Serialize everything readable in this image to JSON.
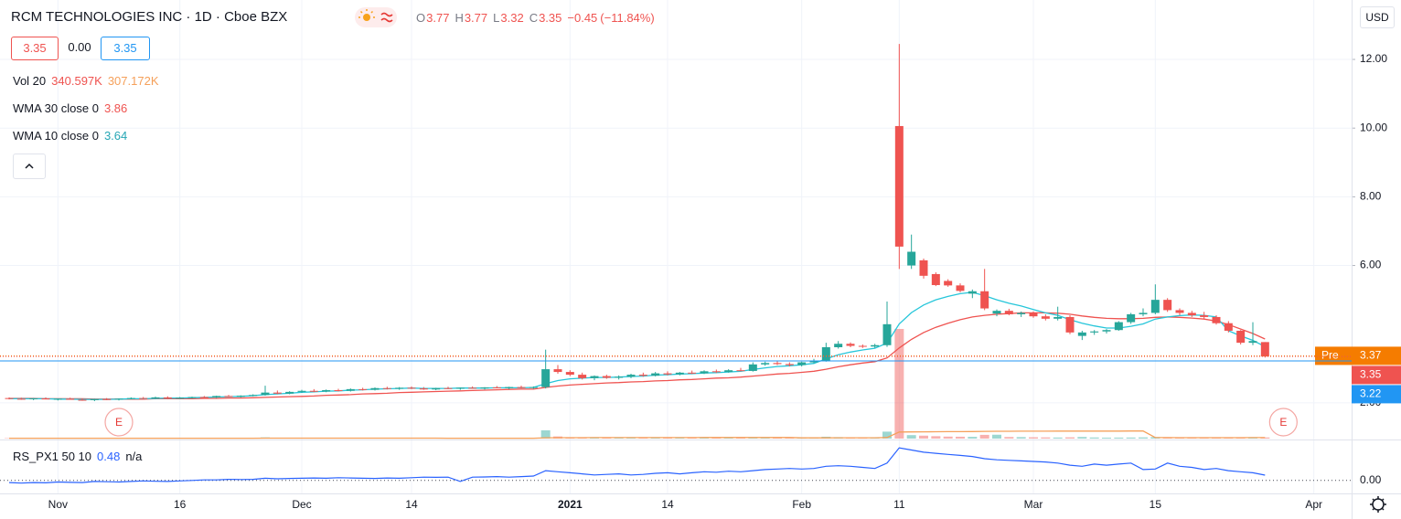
{
  "chart_data": {
    "type": "candlestick",
    "title": "RCM TECHNOLOGIES INC · 1D · Cboe BZX",
    "ohlc_labels": [
      "O",
      "H",
      "L",
      "C"
    ],
    "change": "−0.45",
    "change_pct": "(−11.84%)",
    "quote": {
      "sell": "3.35",
      "spread": "0.00",
      "buy": "3.35"
    },
    "currency": "USD",
    "up_color": "#26a69a",
    "down_color": "#ef5350",
    "grid": true,
    "xlim": [
      -0.75,
      110.1
    ],
    "xticks": [
      {
        "value": 4,
        "label": "Nov"
      },
      {
        "value": 14,
        "label": "16"
      },
      {
        "value": 24,
        "label": "Dec"
      },
      {
        "value": 33,
        "label": "14"
      },
      {
        "value": 46,
        "label": "2021"
      },
      {
        "value": 54,
        "label": "14"
      },
      {
        "value": 65,
        "label": "Feb"
      },
      {
        "value": 73,
        "label": "11"
      },
      {
        "value": 84,
        "label": "Mar"
      },
      {
        "value": 94,
        "label": "15"
      },
      {
        "value": 107,
        "label": "Apr"
      }
    ],
    "ylim": [
      0.96,
      13.73
    ],
    "yticks": [
      {
        "value": 2,
        "label": "2.00"
      },
      {
        "value": 6,
        "label": "6.00"
      },
      {
        "value": 8,
        "label": "8.00"
      },
      {
        "value": 10,
        "label": "10.00"
      },
      {
        "value": 12,
        "label": "12.00"
      }
    ],
    "candles": [
      [
        2.14,
        2.16,
        2.1,
        2.12
      ],
      [
        2.12,
        2.15,
        2.09,
        2.11
      ],
      [
        2.11,
        2.14,
        2.08,
        2.13
      ],
      [
        2.13,
        2.16,
        2.1,
        2.1
      ],
      [
        2.1,
        2.13,
        2.07,
        2.12
      ],
      [
        2.12,
        2.15,
        2.09,
        2.09
      ],
      [
        2.09,
        2.12,
        2.06,
        2.08
      ],
      [
        2.08,
        2.12,
        2.05,
        2.11
      ],
      [
        2.11,
        2.14,
        2.08,
        2.1
      ],
      [
        2.1,
        2.13,
        2.07,
        2.12
      ],
      [
        2.12,
        2.16,
        2.1,
        2.14
      ],
      [
        2.14,
        2.17,
        2.11,
        2.13
      ],
      [
        2.13,
        2.18,
        2.11,
        2.16
      ],
      [
        2.16,
        2.19,
        2.12,
        2.14
      ],
      [
        2.14,
        2.17,
        2.12,
        2.15
      ],
      [
        2.15,
        2.18,
        2.13,
        2.17
      ],
      [
        2.17,
        2.2,
        2.14,
        2.16
      ],
      [
        2.16,
        2.21,
        2.14,
        2.2
      ],
      [
        2.2,
        2.23,
        2.17,
        2.18
      ],
      [
        2.18,
        2.22,
        2.16,
        2.21
      ],
      [
        2.21,
        2.25,
        2.19,
        2.23
      ],
      [
        2.23,
        2.5,
        2.21,
        2.3
      ],
      [
        2.3,
        2.36,
        2.25,
        2.27
      ],
      [
        2.27,
        2.34,
        2.25,
        2.32
      ],
      [
        2.32,
        2.38,
        2.29,
        2.35
      ],
      [
        2.35,
        2.4,
        2.31,
        2.33
      ],
      [
        2.33,
        2.39,
        2.31,
        2.37
      ],
      [
        2.37,
        2.41,
        2.33,
        2.35
      ],
      [
        2.35,
        2.42,
        2.33,
        2.4
      ],
      [
        2.4,
        2.44,
        2.36,
        2.38
      ],
      [
        2.38,
        2.45,
        2.36,
        2.43
      ],
      [
        2.43,
        2.47,
        2.39,
        2.41
      ],
      [
        2.41,
        2.46,
        2.38,
        2.44
      ],
      [
        2.44,
        2.48,
        2.4,
        2.42
      ],
      [
        2.42,
        2.46,
        2.38,
        2.39
      ],
      [
        2.39,
        2.44,
        2.37,
        2.43
      ],
      [
        2.43,
        2.47,
        2.4,
        2.41
      ],
      [
        2.41,
        2.45,
        2.38,
        2.44
      ],
      [
        2.44,
        2.48,
        2.41,
        2.42
      ],
      [
        2.42,
        2.46,
        2.39,
        2.45
      ],
      [
        2.45,
        2.49,
        2.42,
        2.43
      ],
      [
        2.43,
        2.47,
        2.4,
        2.46
      ],
      [
        2.46,
        2.5,
        2.42,
        2.44
      ],
      [
        2.44,
        2.48,
        2.41,
        2.46
      ],
      [
        2.46,
        3.55,
        2.42,
        2.98
      ],
      [
        2.98,
        3.1,
        2.85,
        2.9
      ],
      [
        2.9,
        2.95,
        2.78,
        2.82
      ],
      [
        2.82,
        2.88,
        2.68,
        2.72
      ],
      [
        2.72,
        2.8,
        2.66,
        2.78
      ],
      [
        2.78,
        2.82,
        2.7,
        2.73
      ],
      [
        2.73,
        2.8,
        2.68,
        2.76
      ],
      [
        2.76,
        2.85,
        2.72,
        2.82
      ],
      [
        2.82,
        2.88,
        2.76,
        2.79
      ],
      [
        2.79,
        2.9,
        2.77,
        2.86
      ],
      [
        2.86,
        2.92,
        2.8,
        2.83
      ],
      [
        2.83,
        2.9,
        2.8,
        2.88
      ],
      [
        2.88,
        2.94,
        2.84,
        2.86
      ],
      [
        2.86,
        2.95,
        2.84,
        2.92
      ],
      [
        2.92,
        2.97,
        2.87,
        2.9
      ],
      [
        2.9,
        2.98,
        2.88,
        2.95
      ],
      [
        2.95,
        3.02,
        2.92,
        2.93
      ],
      [
        2.93,
        3.18,
        2.91,
        3.12
      ],
      [
        3.12,
        3.2,
        3.08,
        3.16
      ],
      [
        3.16,
        3.22,
        3.1,
        3.13
      ],
      [
        3.13,
        3.18,
        3.06,
        3.1
      ],
      [
        3.1,
        3.2,
        3.06,
        3.18
      ],
      [
        3.18,
        3.28,
        3.15,
        3.22
      ],
      [
        3.22,
        3.75,
        3.2,
        3.62
      ],
      [
        3.62,
        3.8,
        3.58,
        3.72
      ],
      [
        3.72,
        3.76,
        3.62,
        3.66
      ],
      [
        3.66,
        3.7,
        3.6,
        3.64
      ],
      [
        3.64,
        3.72,
        3.6,
        3.68
      ],
      [
        3.68,
        4.95,
        3.63,
        4.29
      ],
      [
        10.06,
        12.45,
        5.9,
        6.55
      ],
      [
        6.0,
        6.9,
        5.9,
        6.4
      ],
      [
        6.15,
        6.2,
        5.62,
        5.7
      ],
      [
        5.75,
        5.8,
        5.4,
        5.43
      ],
      [
        5.55,
        5.6,
        5.38,
        5.42
      ],
      [
        5.42,
        5.48,
        5.22,
        5.26
      ],
      [
        5.18,
        5.3,
        5.05,
        5.25
      ],
      [
        5.25,
        5.9,
        4.7,
        4.75
      ],
      [
        4.6,
        4.72,
        4.52,
        4.68
      ],
      [
        4.68,
        4.74,
        4.55,
        4.58
      ],
      [
        4.58,
        4.66,
        4.5,
        4.62
      ],
      [
        4.62,
        4.66,
        4.48,
        4.52
      ],
      [
        4.52,
        4.58,
        4.4,
        4.45
      ],
      [
        4.45,
        4.8,
        4.4,
        4.5
      ],
      [
        4.5,
        4.55,
        4.0,
        4.05
      ],
      [
        3.95,
        4.1,
        3.83,
        4.05
      ],
      [
        4.05,
        4.12,
        3.98,
        4.08
      ],
      [
        4.08,
        4.15,
        4.02,
        4.12
      ],
      [
        4.12,
        4.38,
        4.1,
        4.35
      ],
      [
        4.35,
        4.62,
        4.3,
        4.58
      ],
      [
        4.58,
        4.75,
        4.52,
        4.62
      ],
      [
        4.62,
        5.45,
        4.58,
        5.0
      ],
      [
        5.0,
        5.05,
        4.65,
        4.7
      ],
      [
        4.7,
        4.75,
        4.55,
        4.62
      ],
      [
        4.62,
        4.68,
        4.5,
        4.55
      ],
      [
        4.55,
        4.65,
        4.45,
        4.5
      ],
      [
        4.5,
        4.55,
        4.28,
        4.32
      ],
      [
        4.32,
        4.38,
        4.05,
        4.1
      ],
      [
        4.1,
        4.12,
        3.7,
        3.75
      ],
      [
        3.75,
        4.35,
        3.68,
        3.8
      ],
      [
        3.77,
        3.77,
        3.32,
        3.35
      ]
    ],
    "volume": {
      "name": "Vol 20",
      "value_label": "340.597K",
      "ma_label": "307.172K",
      "ma_color": "#f5a05a",
      "values": [
        120,
        100,
        112,
        140,
        120,
        88,
        104,
        124,
        108,
        96,
        116,
        132,
        112,
        100,
        120,
        144,
        108,
        128,
        116,
        104,
        136,
        360,
        160,
        140,
        120,
        112,
        132,
        124,
        108,
        140,
        120,
        116,
        104,
        128,
        112,
        124,
        108,
        120,
        132,
        116,
        140,
        124,
        112,
        136,
        2480,
        640,
        360,
        280,
        240,
        220,
        200,
        240,
        180,
        200,
        220,
        160,
        180,
        200,
        168,
        192,
        220,
        240,
        280,
        260,
        200,
        220,
        240,
        560,
        440,
        320,
        280,
        300,
        2080,
        32800,
        1040,
        880,
        720,
        600,
        560,
        520,
        1120,
        1160,
        480,
        440,
        400,
        360,
        320,
        380,
        480,
        340,
        280,
        300,
        320,
        360,
        440,
        360,
        280,
        260,
        240,
        280,
        320,
        300,
        360,
        340.597
      ],
      "ma": [
        118,
        117,
        116,
        117,
        118,
        117,
        116,
        116,
        117,
        116,
        115,
        116,
        117,
        117,
        116,
        117,
        117,
        118,
        118,
        117,
        118,
        130,
        132,
        133,
        134,
        133,
        134,
        135,
        134,
        133,
        134,
        135,
        134,
        133,
        134,
        133,
        122,
        121,
        121,
        122,
        121,
        122,
        123,
        122,
        240,
        265,
        277,
        285,
        290,
        294,
        297,
        301,
        303,
        306,
        309,
        310,
        312,
        315,
        316,
        318,
        320,
        323,
        325,
        327,
        330,
        215,
        210,
        225,
        233,
        237,
        240,
        243,
        323,
        1960,
        2000,
        2030,
        2055,
        2075,
        2090,
        2110,
        2150,
        2190,
        2200,
        2210,
        2220,
        2225,
        2230,
        2240,
        2250,
        2250,
        2250,
        2250,
        2260,
        2270,
        330,
        300,
        275,
        265,
        260,
        265,
        275,
        285,
        295,
        307.172
      ]
    },
    "series": [
      {
        "name": "WMA 30 close 0",
        "color": "#ef5350",
        "values": [
          2.13,
          2.13,
          2.13,
          2.12,
          2.12,
          2.12,
          2.12,
          2.11,
          2.11,
          2.11,
          2.11,
          2.11,
          2.12,
          2.12,
          2.12,
          2.12,
          2.13,
          2.13,
          2.14,
          2.14,
          2.15,
          2.16,
          2.17,
          2.18,
          2.19,
          2.2,
          2.22,
          2.23,
          2.24,
          2.26,
          2.27,
          2.28,
          2.3,
          2.31,
          2.32,
          2.33,
          2.34,
          2.35,
          2.36,
          2.37,
          2.38,
          2.39,
          2.4,
          2.4,
          2.45,
          2.49,
          2.52,
          2.54,
          2.56,
          2.58,
          2.59,
          2.61,
          2.62,
          2.64,
          2.65,
          2.67,
          2.68,
          2.7,
          2.72,
          2.73,
          2.75,
          2.78,
          2.81,
          2.84,
          2.86,
          2.89,
          2.92,
          2.98,
          3.05,
          3.11,
          3.16,
          3.2,
          3.31,
          3.6,
          3.85,
          4.05,
          4.2,
          4.32,
          4.42,
          4.5,
          4.55,
          4.58,
          4.6,
          4.62,
          4.62,
          4.62,
          4.61,
          4.58,
          4.53,
          4.49,
          4.46,
          4.45,
          4.45,
          4.46,
          4.49,
          4.5,
          4.49,
          4.47,
          4.44,
          4.38,
          4.28,
          4.15,
          4.02,
          3.86
        ]
      },
      {
        "name": "WMA 10 close 0",
        "color": "#26c6da",
        "values": [
          2.12,
          2.12,
          2.12,
          2.12,
          2.11,
          2.11,
          2.1,
          2.1,
          2.1,
          2.11,
          2.12,
          2.12,
          2.13,
          2.14,
          2.14,
          2.15,
          2.16,
          2.17,
          2.18,
          2.19,
          2.21,
          2.24,
          2.26,
          2.28,
          2.31,
          2.32,
          2.34,
          2.35,
          2.37,
          2.38,
          2.4,
          2.41,
          2.42,
          2.43,
          2.42,
          2.42,
          2.42,
          2.43,
          2.43,
          2.43,
          2.44,
          2.44,
          2.44,
          2.45,
          2.56,
          2.65,
          2.7,
          2.72,
          2.74,
          2.74,
          2.75,
          2.77,
          2.78,
          2.81,
          2.82,
          2.84,
          2.85,
          2.87,
          2.88,
          2.9,
          2.92,
          2.97,
          3.02,
          3.06,
          3.08,
          3.11,
          3.15,
          3.28,
          3.4,
          3.48,
          3.54,
          3.59,
          3.74,
          4.3,
          4.63,
          4.85,
          5.0,
          5.1,
          5.18,
          5.22,
          5.12,
          5.0,
          4.9,
          4.82,
          4.72,
          4.62,
          4.55,
          4.42,
          4.32,
          4.24,
          4.18,
          4.18,
          4.23,
          4.3,
          4.44,
          4.5,
          4.54,
          4.56,
          4.55,
          4.5,
          4.1,
          3.95,
          3.82,
          3.64
        ]
      }
    ],
    "price_lines": [
      {
        "label": "Pre",
        "value": 3.37,
        "color": "#f57c00"
      },
      {
        "value": 3.35,
        "color": "#ef5350"
      },
      {
        "value": 3.22,
        "color": "#2196f3"
      }
    ],
    "events": [
      {
        "x": 9,
        "label": "E"
      },
      {
        "x": 104.5,
        "label": "E"
      }
    ],
    "indicator": {
      "name": "RS_PX1 50 10",
      "extra": "n/a",
      "color": "#2962ff",
      "ylim": [
        -1.2,
        3.6
      ],
      "yticks": [
        {
          "value": 0,
          "label": "0.00"
        }
      ],
      "values": [
        -0.2,
        -0.25,
        -0.2,
        -0.22,
        -0.15,
        -0.18,
        -0.2,
        -0.1,
        -0.12,
        -0.15,
        -0.1,
        -0.05,
        -0.08,
        -0.1,
        -0.05,
        0,
        0.05,
        0.05,
        0.1,
        0.08,
        0.1,
        0.2,
        0.15,
        0.18,
        0.2,
        0.22,
        0.2,
        0.25,
        0.22,
        0.2,
        0.18,
        0.22,
        0.2,
        0.25,
        0.3,
        0.28,
        0.3,
        -0.1,
        0.3,
        0.32,
        0.35,
        0.3,
        0.35,
        0.4,
        0.9,
        0.8,
        0.7,
        0.6,
        0.5,
        0.55,
        0.6,
        0.5,
        0.55,
        0.65,
        0.7,
        0.6,
        0.7,
        0.8,
        0.75,
        0.85,
        0.8,
        0.9,
        1.0,
        1.05,
        1.1,
        1.05,
        1.1,
        1.3,
        1.35,
        1.3,
        1.2,
        1.1,
        1.6,
        3.0,
        2.8,
        2.6,
        2.5,
        2.4,
        2.3,
        2.2,
        2.0,
        1.9,
        1.85,
        1.8,
        1.75,
        1.7,
        1.6,
        1.4,
        1.3,
        1.5,
        1.4,
        1.5,
        1.6,
        1.0,
        1.05,
        1.6,
        1.3,
        1.2,
        1.0,
        1.1,
        0.9,
        0.8,
        0.7,
        0.48
      ]
    }
  }
}
